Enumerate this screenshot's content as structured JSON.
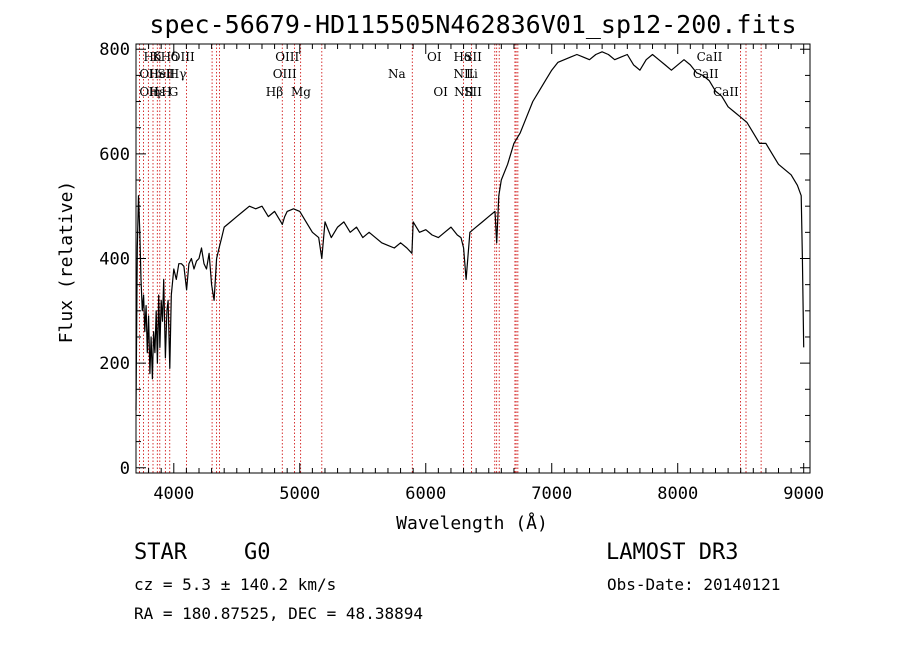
{
  "chart_data": {
    "type": "line",
    "title": "spec-56679-HD115505N462836V01_sp12-200.fits",
    "xlabel": "Wavelength (Å)",
    "ylabel": "Flux (relative)",
    "xlim": [
      3700,
      9050
    ],
    "ylim": [
      -10,
      810
    ],
    "xticks": [
      4000,
      5000,
      6000,
      7000,
      8000,
      9000
    ],
    "yticks": [
      0,
      200,
      400,
      600,
      800
    ],
    "grid": false,
    "series": [
      {
        "name": "spectrum",
        "x": [
          3700,
          3710,
          3720,
          3730,
          3740,
          3750,
          3760,
          3770,
          3780,
          3790,
          3800,
          3810,
          3820,
          3830,
          3840,
          3850,
          3860,
          3870,
          3880,
          3890,
          3900,
          3910,
          3920,
          3933,
          3945,
          3955,
          3968,
          3980,
          4000,
          4020,
          4040,
          4060,
          4080,
          4102,
          4120,
          4140,
          4160,
          4180,
          4200,
          4220,
          4240,
          4260,
          4280,
          4300,
          4320,
          4340,
          4360,
          4380,
          4400,
          4450,
          4500,
          4550,
          4600,
          4650,
          4700,
          4750,
          4800,
          4850,
          4861,
          4880,
          4900,
          4950,
          5000,
          5050,
          5100,
          5150,
          5175,
          5200,
          5250,
          5300,
          5350,
          5400,
          5450,
          5500,
          5550,
          5600,
          5650,
          5700,
          5750,
          5800,
          5850,
          5890,
          5900,
          5950,
          6000,
          6050,
          6100,
          6150,
          6200,
          6250,
          6280,
          6300,
          6320,
          6350,
          6400,
          6450,
          6500,
          6550,
          6563,
          6580,
          6600,
          6650,
          6700,
          6750,
          6800,
          6850,
          6900,
          6950,
          7000,
          7050,
          7100,
          7150,
          7200,
          7250,
          7300,
          7350,
          7400,
          7450,
          7500,
          7550,
          7600,
          7650,
          7700,
          7750,
          7800,
          7850,
          7900,
          7950,
          8000,
          8050,
          8100,
          8150,
          8200,
          8250,
          8300,
          8350,
          8400,
          8450,
          8500,
          8550,
          8600,
          8650,
          8700,
          8750,
          8800,
          8850,
          8900,
          8950,
          8980,
          8990,
          9000
        ],
        "values": [
          110,
          420,
          520,
          450,
          360,
          300,
          330,
          260,
          310,
          220,
          290,
          180,
          250,
          170,
          260,
          220,
          300,
          200,
          330,
          230,
          320,
          280,
          360,
          210,
          300,
          320,
          190,
          330,
          380,
          360,
          390,
          390,
          385,
          340,
          390,
          400,
          380,
          395,
          400,
          420,
          390,
          380,
          410,
          350,
          320,
          400,
          420,
          440,
          460,
          470,
          480,
          490,
          500,
          495,
          500,
          480,
          490,
          470,
          465,
          480,
          490,
          495,
          490,
          470,
          450,
          440,
          400,
          470,
          440,
          460,
          470,
          450,
          460,
          440,
          450,
          440,
          430,
          425,
          420,
          430,
          420,
          410,
          470,
          450,
          455,
          445,
          440,
          450,
          460,
          445,
          440,
          420,
          360,
          450,
          460,
          470,
          480,
          490,
          430,
          520,
          550,
          580,
          620,
          640,
          670,
          700,
          720,
          740,
          760,
          775,
          780,
          785,
          790,
          785,
          780,
          790,
          795,
          790,
          780,
          785,
          790,
          770,
          760,
          780,
          790,
          780,
          770,
          760,
          770,
          780,
          770,
          755,
          750,
          740,
          720,
          710,
          690,
          680,
          670,
          660,
          640,
          620,
          620,
          600,
          580,
          570,
          560,
          540,
          520,
          400,
          230
        ]
      }
    ],
    "line_marks": [
      {
        "label": "Hδ",
        "x": 3760,
        "row": 1
      },
      {
        "label": "OII",
        "x": 3727,
        "row": 2
      },
      {
        "label": "OII",
        "x": 3727,
        "row": 3
      },
      {
        "label": "Hε",
        "x": 3800,
        "row": 3
      },
      {
        "label": "K",
        "x": 3830,
        "row": 1
      },
      {
        "label": "HeI",
        "x": 3800,
        "row": 2
      },
      {
        "label": "η",
        "x": 3835,
        "row": 3
      },
      {
        "label": "Hδ",
        "x": 3895,
        "row": 1
      },
      {
        "label": "SII",
        "x": 3870,
        "row": 2
      },
      {
        "label": "H",
        "x": 3900,
        "row": 3
      },
      {
        "label": "OIII",
        "x": 3975,
        "row": 1
      },
      {
        "label": "Hγ",
        "x": 3960,
        "row": 2
      },
      {
        "label": "G",
        "x": 3960,
        "row": 3
      },
      {
        "label": "OIII",
        "x": 4805,
        "row": 1
      },
      {
        "label": "OIII",
        "x": 4785,
        "row": 2
      },
      {
        "label": "Hβ",
        "x": 4730,
        "row": 3
      },
      {
        "label": "Mg",
        "x": 4930,
        "row": 3
      },
      {
        "label": "Na",
        "x": 5700,
        "row": 2
      },
      {
        "label": "OI",
        "x": 6010,
        "row": 1
      },
      {
        "label": "OI",
        "x": 6060,
        "row": 3
      },
      {
        "label": "Hα",
        "x": 6220,
        "row": 1
      },
      {
        "label": "SII",
        "x": 6305,
        "row": 1
      },
      {
        "label": "NII",
        "x": 6220,
        "row": 2
      },
      {
        "label": "Li",
        "x": 6320,
        "row": 2
      },
      {
        "label": "NII",
        "x": 6225,
        "row": 3
      },
      {
        "label": "SII",
        "x": 6305,
        "row": 3
      },
      {
        "label": "CaII",
        "x": 8150,
        "row": 1
      },
      {
        "label": "CaII",
        "x": 8120,
        "row": 2
      },
      {
        "label": "CaII",
        "x": 8280,
        "row": 3
      }
    ],
    "line_positions": [
      3727,
      3760,
      3798,
      3835,
      3869,
      3889,
      3933,
      3968,
      4101,
      4304,
      4340,
      4363,
      4861,
      4959,
      5007,
      5175,
      5893,
      6300,
      6364,
      6548,
      6563,
      6583,
      6708,
      6717,
      6731,
      8498,
      8542,
      8662
    ]
  },
  "info": {
    "object_class": "STAR",
    "subclass": "G0",
    "survey": "LAMOST DR3",
    "redshift": "cz = 5.3 ± 140.2 km/s",
    "obs_date": "Obs-Date: 20140121",
    "coordinates": "RA = 180.87525, DEC =  48.38894"
  },
  "colors": {
    "spectrum": "#000000",
    "line_marker": "#cc0000",
    "axis": "#000000"
  }
}
